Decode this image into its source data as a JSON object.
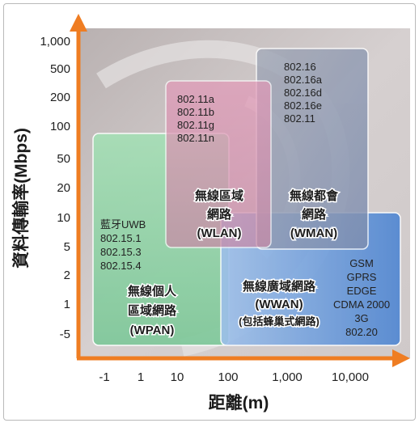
{
  "axes": {
    "y_label": "資料傳輸率(Mbps)",
    "x_label": "距離(m)",
    "y_ticks": [
      "1,000",
      "500",
      "200",
      "100",
      "50",
      "20",
      "10",
      "5",
      "2",
      "1",
      "-5"
    ],
    "x_ticks": [
      "-1",
      "1",
      "10",
      "100",
      "1,000",
      "10,000"
    ]
  },
  "regions": {
    "wpan": {
      "standards": [
        "藍牙UWB",
        "802.15.1",
        "802.15.3",
        "802.15.4"
      ],
      "title": [
        "無線個人",
        "區域網路",
        "(WPAN)"
      ]
    },
    "wlan": {
      "standards": [
        "802.11a",
        "802.11b",
        "802.11g",
        "802.11n"
      ],
      "title": [
        "無線區域",
        "網路",
        "(WLAN)"
      ]
    },
    "wman": {
      "standards": [
        "802.16",
        "802.16a",
        "802.16d",
        "802.16e",
        "802.11"
      ],
      "title": [
        "無線都會",
        "網路",
        "(WMAN)"
      ]
    },
    "wwan": {
      "standards": [
        "GSM",
        "GPRS",
        "EDGE",
        "CDMA 2000",
        "3G",
        "802.20"
      ],
      "title": [
        "無線廣域網路",
        "(WWAN)",
        "(包括蜂巢式網路)"
      ]
    }
  },
  "colors": {
    "axis": "#ef7d22",
    "background": "#c9c3c3",
    "wpan": "#8fd3a6",
    "wlan": "#d98aab",
    "wman": "#8e9ab5",
    "wwan": "#6c9ad9"
  }
}
